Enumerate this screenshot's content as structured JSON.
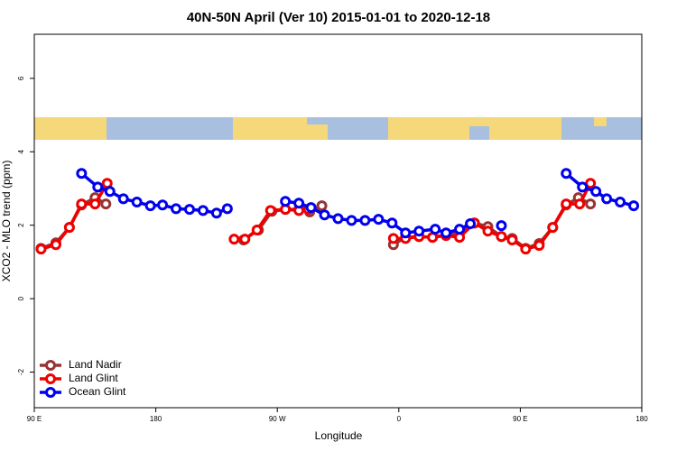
{
  "chart_data": {
    "type": "line",
    "title": "40N-50N April (Ver 10)   2015-01-01 to 2020-12-18",
    "x_label": "Longitude",
    "y_label": "XCO2 - MLO trend (ppm)",
    "xlim": [
      90,
      540
    ],
    "ylim": [
      -2.97,
      7.2
    ],
    "xticks": [
      {
        "value": 90,
        "label": "90 E"
      },
      180,
      {
        "value": 270,
        "label": "90 W"
      },
      {
        "value": 360,
        "label": "0"
      },
      {
        "value": 450,
        "label": "90 E"
      },
      {
        "value": 540,
        "label": "180"
      }
    ],
    "yticks": [
      -2,
      0,
      2,
      4,
      6
    ],
    "legend": "bottomleft",
    "series": [
      {
        "name": "Land Nadir",
        "color": "#993333",
        "x": [
          95,
          106,
          116,
          125,
          135,
          143,
          null,
          245,
          256,
          266,
          276,
          286,
          294,
          303,
          null,
          356,
          365,
          375,
          385,
          395,
          405,
          416,
          426,
          436,
          444,
          454,
          464,
          474,
          484,
          493,
          502
        ],
        "values": [
          1.37,
          1.52,
          1.94,
          2.55,
          2.75,
          2.58,
          null,
          1.6,
          1.87,
          2.38,
          2.43,
          2.43,
          2.36,
          2.53,
          null,
          1.47,
          1.67,
          1.69,
          1.67,
          1.74,
          1.79,
          2.06,
          1.96,
          1.69,
          1.64,
          1.37,
          1.5,
          1.94,
          2.55,
          2.75,
          2.58
        ]
      },
      {
        "name": "Land Glint",
        "color": "#ee0000",
        "x": [
          95,
          106,
          116,
          125,
          135,
          144,
          null,
          238,
          246,
          255,
          265,
          276,
          286,
          293,
          null,
          356,
          365,
          375,
          385,
          395,
          405,
          416,
          426,
          436,
          444,
          454,
          464,
          474,
          484,
          494,
          502
        ],
        "values": [
          1.35,
          1.47,
          1.94,
          2.58,
          2.58,
          3.14,
          null,
          1.62,
          1.62,
          1.87,
          2.4,
          2.43,
          2.4,
          2.43,
          null,
          1.64,
          1.64,
          1.69,
          1.67,
          1.72,
          1.67,
          2.06,
          1.84,
          1.69,
          1.6,
          1.35,
          1.45,
          1.94,
          2.58,
          2.58,
          3.14
        ]
      },
      {
        "name": "Ocean Glint",
        "color": "#0000ee",
        "x": [
          125,
          137,
          146,
          156,
          166,
          176,
          185,
          195,
          205,
          215,
          225,
          233,
          null,
          276,
          286,
          295,
          305,
          315,
          325,
          335,
          345,
          355,
          365,
          375,
          387,
          395,
          405,
          413,
          null,
          436,
          null,
          484,
          496,
          506,
          514,
          524,
          534
        ],
        "values": [
          3.41,
          3.04,
          2.92,
          2.72,
          2.63,
          2.53,
          2.55,
          2.45,
          2.43,
          2.4,
          2.33,
          2.45,
          null,
          2.65,
          2.6,
          2.48,
          2.28,
          2.18,
          2.13,
          2.13,
          2.16,
          2.06,
          1.79,
          1.84,
          1.89,
          1.79,
          1.89,
          2.04,
          null,
          1.99,
          null,
          3.41,
          3.04,
          2.92,
          2.72,
          2.63,
          2.53
        ]
      }
    ]
  }
}
